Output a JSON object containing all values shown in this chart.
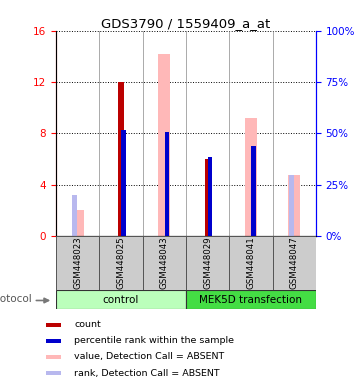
{
  "title": "GDS3790 / 1559409_a_at",
  "samples": [
    "GSM448023",
    "GSM448025",
    "GSM448043",
    "GSM448029",
    "GSM448041",
    "GSM448047"
  ],
  "count_values": [
    0,
    12,
    0,
    6,
    0,
    0
  ],
  "percentile_rank_values": [
    0,
    8.3,
    8.1,
    6.2,
    7.0,
    0
  ],
  "value_absent": [
    2.0,
    0,
    14.2,
    0,
    9.2,
    4.8
  ],
  "rank_absent": [
    3.2,
    0,
    0,
    0,
    0,
    4.8
  ],
  "ylim_left": [
    0,
    16
  ],
  "ylim_right": [
    0,
    100
  ],
  "yticks_left": [
    0,
    4,
    8,
    12,
    16
  ],
  "yticks_right": [
    0,
    25,
    50,
    75,
    100
  ],
  "color_count": "#bb0000",
  "color_percentile": "#0000cc",
  "color_value_absent": "#ffb8b8",
  "color_rank_absent": "#b8b8ee",
  "group_control_color": "#bbffbb",
  "group_transfection_color": "#44dd44",
  "sample_bg_color": "#cccccc",
  "legend_items": [
    {
      "color": "#bb0000",
      "label": "count"
    },
    {
      "color": "#0000cc",
      "label": "percentile rank within the sample"
    },
    {
      "color": "#ffb8b8",
      "label": "value, Detection Call = ABSENT"
    },
    {
      "color": "#b8b8ee",
      "label": "rank, Detection Call = ABSENT"
    }
  ]
}
